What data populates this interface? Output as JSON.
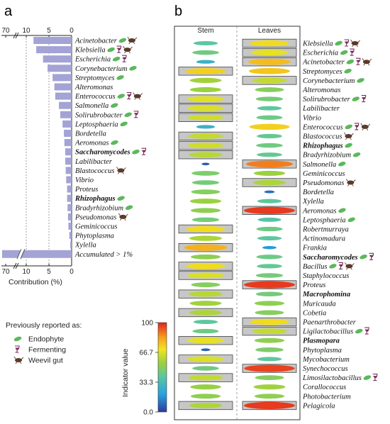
{
  "panels": {
    "a_label": "a",
    "b_label": "b"
  },
  "colors": {
    "bar": "#a3a3d6",
    "bar_edge": "#8a8acb",
    "box_fill": "#c7c7c7",
    "leaf": "#5cb85c",
    "weevil": "#5a3a2a",
    "ferment": "#7b2d5a"
  },
  "chart_data": [
    {
      "type": "bar",
      "orientation": "horizontal",
      "xlabel": "Contribution (%)",
      "x_ticks": [
        "70",
        "10",
        "5",
        "0"
      ],
      "axis_break": true,
      "categories": [
        "Acinetobacter",
        "Klebsiella",
        "Escherichia",
        "Corynebacterium",
        "Streptomyces",
        "Alteromonas",
        "Enterococcus",
        "Salmonella",
        "Solirubrobacter",
        "Leptosphaeria",
        "Bordetella",
        "Aeromonas",
        "Saccharomycodes",
        "Labilibacter",
        "Blastococcus",
        "Vibrio",
        "Proteus",
        "Rhizophagus",
        "Bradyrhizobium",
        "Pseudomonas",
        "Geminicoccus",
        "Phytoplasma",
        "Xylella",
        "Accumulated > 1%"
      ],
      "values": [
        8.4,
        7.8,
        6.3,
        5.3,
        4.2,
        3.8,
        3.6,
        2.8,
        2.5,
        2.0,
        1.7,
        1.6,
        1.4,
        1.4,
        1.3,
        1.2,
        1.0,
        1.0,
        0.9,
        0.8,
        0.7,
        0.5,
        0.3,
        70
      ],
      "bold": [
        "Saccharomycodes",
        "Rhizophagus"
      ],
      "annotations": [
        [
          "endophyte",
          "weevil"
        ],
        [
          "endophyte",
          "fermenting",
          "weevil"
        ],
        [
          "endophyte",
          "fermenting"
        ],
        [
          "endophyte"
        ],
        [
          "endophyte"
        ],
        [],
        [
          "endophyte",
          "fermenting",
          "weevil"
        ],
        [
          "endophyte"
        ],
        [
          "endophyte",
          "fermenting"
        ],
        [
          "endophyte"
        ],
        [],
        [
          "endophyte"
        ],
        [
          "endophyte",
          "fermenting"
        ],
        [],
        [
          "weevil"
        ],
        [],
        [],
        [
          "endophyte"
        ],
        [
          "endophyte"
        ],
        [
          "weevil"
        ],
        [],
        [],
        [],
        []
      ]
    },
    {
      "type": "heatmap",
      "columns": [
        "Stem",
        "Leaves"
      ],
      "colorbar": {
        "label": "Indicator value",
        "ticks": [
          "100",
          "66.7",
          "33.3",
          "0.0"
        ],
        "range": [
          0,
          100
        ]
      },
      "rows": [
        {
          "name": "Klebsiella",
          "stem": 40,
          "leaves": 72,
          "box": "leaves",
          "ann": [
            "endophyte",
            "fermenting",
            "weevil"
          ]
        },
        {
          "name": "Escherichia",
          "stem": 45,
          "leaves": 68,
          "box": "leaves",
          "ann": [
            "endophyte",
            "fermenting"
          ]
        },
        {
          "name": "Acinetobacter",
          "stem": 28,
          "leaves": 78,
          "box": "leaves",
          "ann": [
            "endophyte",
            "fermenting",
            "weevil"
          ]
        },
        {
          "name": "Streptomyces",
          "stem": 74,
          "leaves": 76,
          "box": "stem",
          "ann": [
            "endophyte"
          ]
        },
        {
          "name": "Corynebacterium",
          "stem": 56,
          "leaves": 62,
          "box": "leaves",
          "ann": [
            "endophyte"
          ]
        },
        {
          "name": "Alteromonas",
          "stem": 55,
          "leaves": 50,
          "box": "",
          "ann": []
        },
        {
          "name": "Solirubrobacter",
          "stem": 67,
          "leaves": 46,
          "box": "stem",
          "ann": [
            "endophyte",
            "fermenting"
          ]
        },
        {
          "name": "Labilibacter",
          "stem": 66,
          "leaves": 40,
          "box": "stem",
          "ann": []
        },
        {
          "name": "Vibrio",
          "stem": 64,
          "leaves": 44,
          "box": "stem",
          "ann": []
        },
        {
          "name": "Enterococcus",
          "stem": 28,
          "leaves": 74,
          "box": "",
          "ann": [
            "endophyte",
            "fermenting",
            "weevil"
          ]
        },
        {
          "name": "Blastococcus",
          "stem": 62,
          "leaves": 42,
          "box": "stem",
          "ann": [
            "weevil"
          ]
        },
        {
          "name": "Rhizophagus",
          "stem": 64,
          "leaves": 45,
          "box": "stem",
          "ann": [
            "endophyte"
          ],
          "bold": true
        },
        {
          "name": "Bradyrhizobium",
          "stem": 60,
          "leaves": 42,
          "box": "stem",
          "ann": [
            "endophyte"
          ]
        },
        {
          "name": "Salmonella",
          "stem": 5,
          "leaves": 88,
          "box": "leaves",
          "ann": [
            "endophyte"
          ]
        },
        {
          "name": "Geminicoccus",
          "stem": 48,
          "leaves": 55,
          "box": "",
          "ann": []
        },
        {
          "name": "Pseudomonas",
          "stem": 46,
          "leaves": 58,
          "box": "leaves",
          "ann": [
            "weevil"
          ]
        },
        {
          "name": "Bordetella",
          "stem": 50,
          "leaves": 10,
          "box": "",
          "ann": []
        },
        {
          "name": "Xylella",
          "stem": 55,
          "leaves": 40,
          "box": "",
          "ann": []
        },
        {
          "name": "Aeromonas",
          "stem": 52,
          "leaves": 97,
          "box": "leaves",
          "ann": [
            "endophyte"
          ]
        },
        {
          "name": "Leptosphaeria",
          "stem": 46,
          "leaves": 38,
          "box": "",
          "ann": [
            "endophyte"
          ]
        },
        {
          "name": "Robertmurraya",
          "stem": 72,
          "leaves": 44,
          "box": "stem",
          "ann": []
        },
        {
          "name": "Actinomadura",
          "stem": 58,
          "leaves": 40,
          "box": "",
          "ann": []
        },
        {
          "name": "Frankia",
          "stem": 80,
          "leaves": 18,
          "box": "stem",
          "ann": []
        },
        {
          "name": "Saccharomycodes",
          "stem": 52,
          "leaves": 44,
          "box": "",
          "ann": [
            "endophyte",
            "fermenting"
          ],
          "bold": true
        },
        {
          "name": "Bacillus",
          "stem": 72,
          "leaves": 42,
          "box": "stem",
          "ann": [
            "endophyte",
            "fermenting",
            "weevil"
          ]
        },
        {
          "name": "Staphylococcus",
          "stem": 66,
          "leaves": 46,
          "box": "stem",
          "ann": []
        },
        {
          "name": "Proteus",
          "stem": 50,
          "leaves": 97,
          "box": "leaves",
          "ann": []
        },
        {
          "name": "Macrophomina",
          "stem": 60,
          "leaves": 46,
          "box": "stem",
          "ann": [],
          "bold": true
        },
        {
          "name": "Muricauda",
          "stem": 56,
          "leaves": 52,
          "box": "",
          "ann": []
        },
        {
          "name": "Cobetia",
          "stem": 58,
          "leaves": 50,
          "box": "stem",
          "ann": []
        },
        {
          "name": "Paenarthrobacter",
          "stem": 40,
          "leaves": 72,
          "box": "leaves",
          "ann": []
        },
        {
          "name": "Ligilactobacillus",
          "stem": 44,
          "leaves": 62,
          "box": "leaves",
          "ann": [
            "endophyte",
            "fermenting"
          ]
        },
        {
          "name": "Plasmopara",
          "stem": 68,
          "leaves": 52,
          "box": "stem",
          "ann": [],
          "bold": true
        },
        {
          "name": "Phytoplasma",
          "stem": 8,
          "leaves": 48,
          "box": "",
          "ann": []
        },
        {
          "name": "Mycobacterium",
          "stem": 66,
          "leaves": 40,
          "box": "stem",
          "ann": []
        },
        {
          "name": "Synechococcus",
          "stem": 45,
          "leaves": 96,
          "box": "leaves",
          "ann": []
        },
        {
          "name": "Limosilactobacillus",
          "stem": 62,
          "leaves": 50,
          "box": "stem",
          "ann": [
            "endophyte",
            "fermenting"
          ]
        },
        {
          "name": "Corallococcus",
          "stem": 54,
          "leaves": 56,
          "box": "",
          "ann": []
        },
        {
          "name": "Photobacterium",
          "stem": 52,
          "leaves": 52,
          "box": "",
          "ann": []
        },
        {
          "name": "Pelagicola",
          "stem": 58,
          "leaves": 97,
          "box": "both",
          "ann": []
        }
      ]
    }
  ],
  "legend": {
    "title": "Previously reported as:",
    "items": [
      {
        "icon": "endophyte",
        "label": "Endophyte"
      },
      {
        "icon": "fermenting",
        "label": "Fermenting"
      },
      {
        "icon": "weevil",
        "label": "Weevil gut"
      }
    ]
  }
}
